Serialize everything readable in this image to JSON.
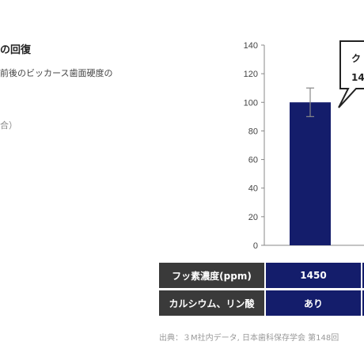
{
  "text": {
    "title": "の回復",
    "description": "前後のビッカース歯面硬度の",
    "note": "合）",
    "callout": [
      "ク",
      "14"
    ],
    "source": "出典：３M社内データ, 日本歯科保存学会 第148回"
  },
  "table": {
    "rows": [
      {
        "header": "フッ素濃度(ppm)",
        "value": "1450"
      },
      {
        "header": "カルシウム、リン酸",
        "value": "あり"
      }
    ]
  },
  "colors": {
    "bar": "#141d6b",
    "header": "#3a3a3a",
    "axis": "#888888",
    "callout_border": "#222222"
  },
  "chart_data": {
    "type": "bar",
    "title": "",
    "xlabel": "",
    "ylabel": "",
    "ylim": [
      0,
      140
    ],
    "yticks": [
      "0",
      "20",
      "40",
      "60",
      "80",
      "100",
      "120",
      "140"
    ],
    "grid": false,
    "categories": [
      "1450"
    ],
    "series": [
      {
        "values": [
          100
        ],
        "error": [
          10
        ]
      }
    ]
  }
}
